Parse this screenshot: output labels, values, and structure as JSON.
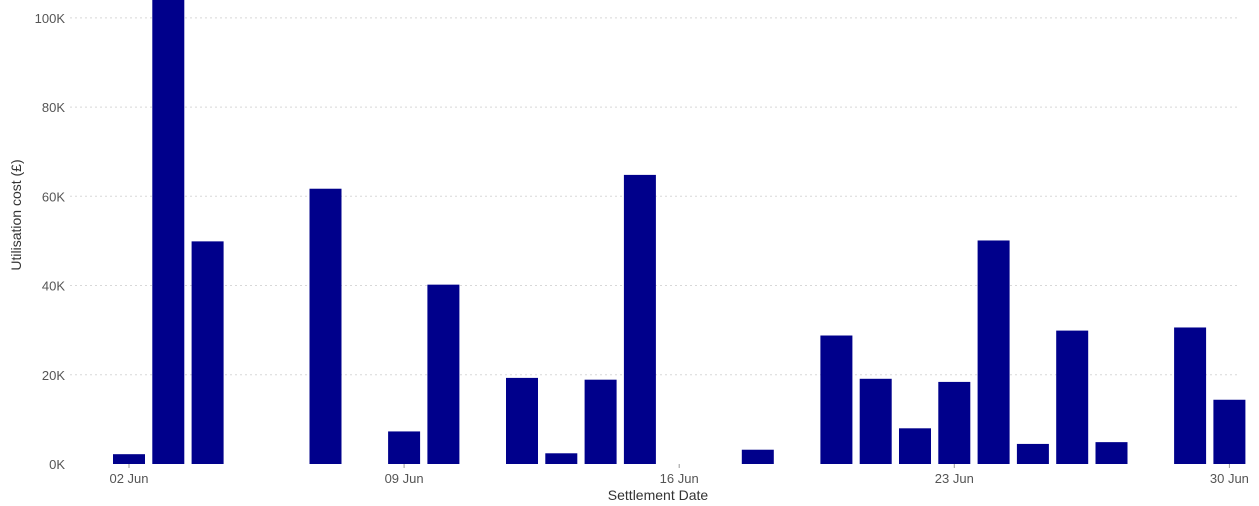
{
  "chart_data": {
    "type": "bar",
    "xlabel": "Settlement Date",
    "ylabel": "Utilisation cost (£)",
    "x_ticks": [
      {
        "day": 2,
        "label": "02 Jun"
      },
      {
        "day": 9,
        "label": "09 Jun"
      },
      {
        "day": 16,
        "label": "16 Jun"
      },
      {
        "day": 23,
        "label": "23 Jun"
      },
      {
        "day": 30,
        "label": "30 Jun"
      }
    ],
    "y_ticks": [
      {
        "value": 0,
        "label": "0K"
      },
      {
        "value": 20000,
        "label": "20K"
      },
      {
        "value": 40000,
        "label": "40K"
      },
      {
        "value": 60000,
        "label": "60K"
      },
      {
        "value": 80000,
        "label": "80K"
      },
      {
        "value": 100000,
        "label": "100K"
      }
    ],
    "ylim": [
      0,
      104000
    ],
    "grid": true,
    "bar_color": "#00008b",
    "bars": [
      {
        "day": 2,
        "value": 2200
      },
      {
        "day": 3,
        "value": 104000
      },
      {
        "day": 4,
        "value": 49900
      },
      {
        "day": 7,
        "value": 61700
      },
      {
        "day": 9,
        "value": 7300
      },
      {
        "day": 10,
        "value": 40200
      },
      {
        "day": 12,
        "value": 19300
      },
      {
        "day": 13,
        "value": 2400
      },
      {
        "day": 14,
        "value": 18900
      },
      {
        "day": 15,
        "value": 64800
      },
      {
        "day": 18,
        "value": 3200
      },
      {
        "day": 20,
        "value": 28800
      },
      {
        "day": 21,
        "value": 19100
      },
      {
        "day": 22,
        "value": 8000
      },
      {
        "day": 23,
        "value": 18400
      },
      {
        "day": 24,
        "value": 50100
      },
      {
        "day": 25,
        "value": 4500
      },
      {
        "day": 26,
        "value": 29900
      },
      {
        "day": 27,
        "value": 4900
      },
      {
        "day": 29,
        "value": 30600
      },
      {
        "day": 30,
        "value": 14400
      }
    ]
  }
}
